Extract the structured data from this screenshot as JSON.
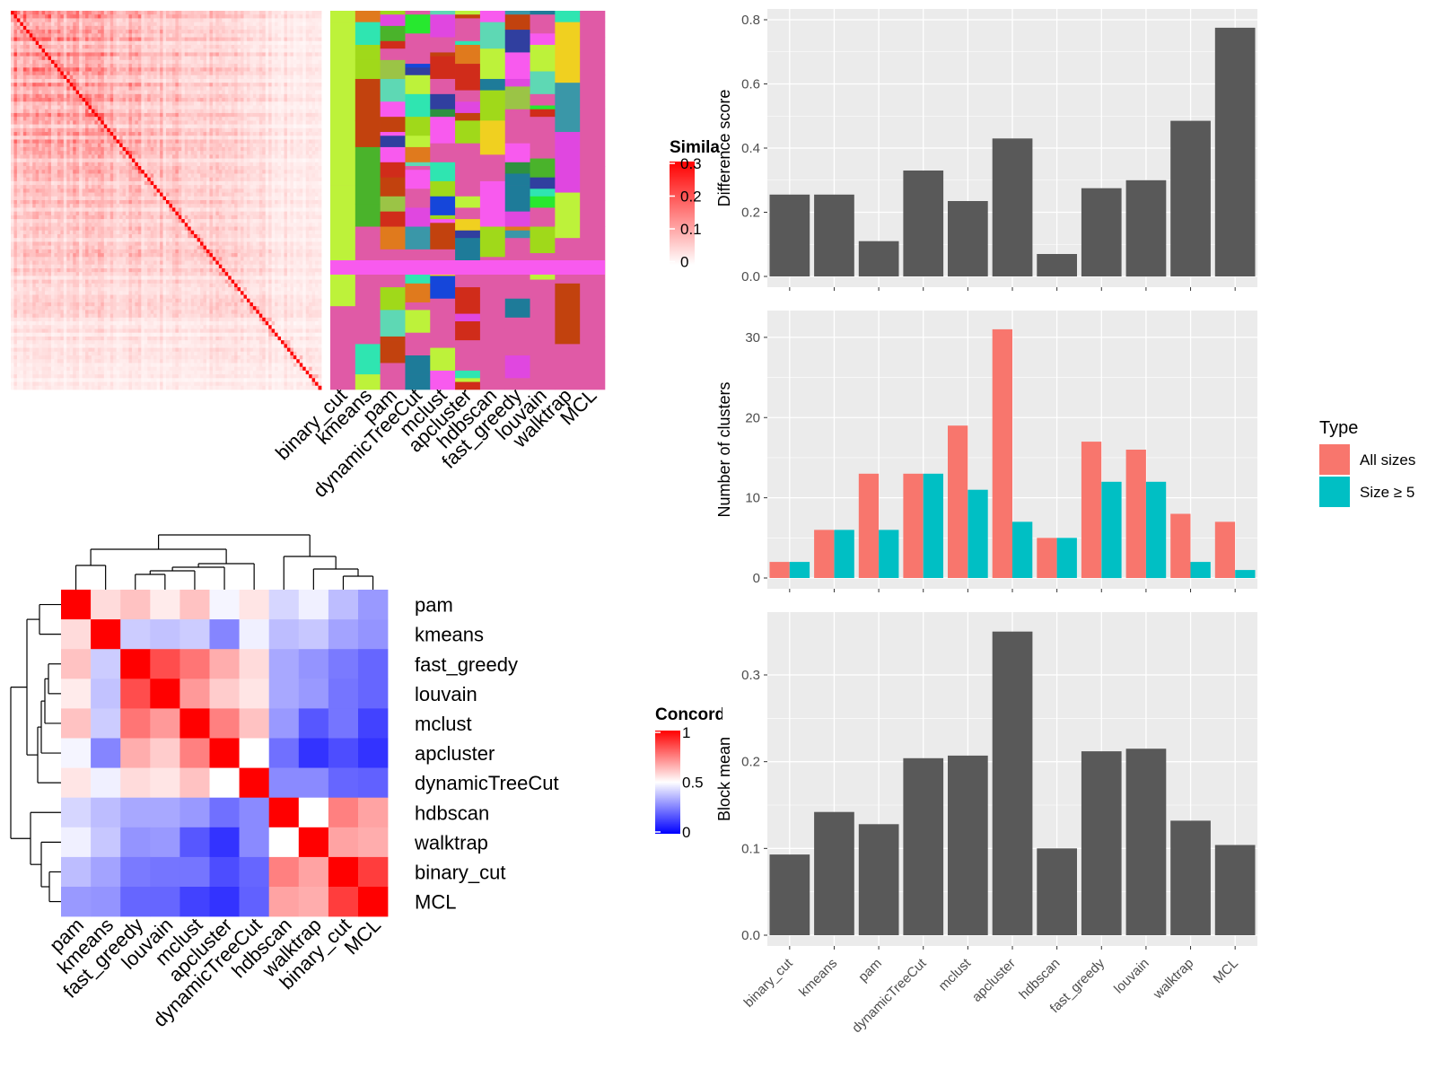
{
  "colors": {
    "bar_gray": "#595959",
    "panel_bg": "#ebebeb",
    "all_sizes": "#F8766D",
    "size_ge5": "#00BFC4",
    "heat_high": "#ff0000",
    "heat_mid": "#ffffff",
    "heat_low": "#0000ff"
  },
  "methods_order": [
    "binary_cut",
    "kmeans",
    "pam",
    "dynamicTreeCut",
    "mclust",
    "apcluster",
    "hdbscan",
    "fast_greedy",
    "louvain",
    "walktrap",
    "MCL"
  ],
  "similarity_legend": {
    "title": "Simila",
    "ticks": [
      "0.3",
      "0.2",
      "0.1",
      "0"
    ]
  },
  "concordance_legend": {
    "title": "Concord",
    "ticks": [
      "1",
      "0.5",
      "0"
    ]
  },
  "chart_data": [
    {
      "type": "bar",
      "id": "difference-score",
      "categories": [
        "binary_cut",
        "kmeans",
        "pam",
        "dynamicTreeCut",
        "mclust",
        "apcluster",
        "hdbscan",
        "fast_greedy",
        "louvain",
        "walktrap",
        "MCL"
      ],
      "values": [
        0.255,
        0.255,
        0.11,
        0.33,
        0.235,
        0.43,
        0.07,
        0.275,
        0.3,
        0.485,
        0.775
      ],
      "ylabel": "Difference score",
      "ylim": [
        0,
        0.8
      ],
      "yticks": [
        "0.0",
        "0.2",
        "0.4",
        "0.6",
        "0.8"
      ],
      "grid": true
    },
    {
      "type": "bar",
      "id": "number-of-clusters",
      "categories": [
        "binary_cut",
        "kmeans",
        "pam",
        "dynamicTreeCut",
        "mclust",
        "apcluster",
        "hdbscan",
        "fast_greedy",
        "louvain",
        "walktrap",
        "MCL"
      ],
      "series": [
        {
          "name": "All sizes",
          "values": [
            2,
            6,
            13,
            13,
            19,
            31,
            5,
            17,
            16,
            8,
            7
          ]
        },
        {
          "name": "Size ≥ 5",
          "values": [
            2,
            6,
            6,
            13,
            11,
            7,
            5,
            12,
            12,
            2,
            1
          ]
        }
      ],
      "ylabel": "Number of clusters",
      "ylim": [
        0,
        32
      ],
      "yticks": [
        "0",
        "10",
        "20",
        "30"
      ],
      "legend": {
        "title": "Type",
        "position": "right"
      },
      "grid": true
    },
    {
      "type": "bar",
      "id": "block-mean",
      "categories": [
        "binary_cut",
        "kmeans",
        "pam",
        "dynamicTreeCut",
        "mclust",
        "apcluster",
        "hdbscan",
        "fast_greedy",
        "louvain",
        "walktrap",
        "MCL"
      ],
      "values": [
        0.093,
        0.142,
        0.128,
        0.204,
        0.207,
        0.35,
        0.1,
        0.212,
        0.215,
        0.132,
        0.104
      ],
      "ylabel": "Block mean",
      "ylim": [
        0,
        0.36
      ],
      "yticks": [
        "0.0",
        "0.1",
        "0.2",
        "0.3"
      ],
      "grid": true
    },
    {
      "type": "heatmap",
      "id": "concordance-heatmap",
      "rows": [
        "pam",
        "kmeans",
        "fast_greedy",
        "louvain",
        "mclust",
        "apcluster",
        "dynamicTreeCut",
        "hdbscan",
        "walktrap",
        "binary_cut",
        "MCL"
      ],
      "columns": [
        "pam",
        "kmeans",
        "fast_greedy",
        "louvain",
        "mclust",
        "apcluster",
        "dynamicTreeCut",
        "hdbscan",
        "walktrap",
        "binary_cut",
        "MCL"
      ],
      "values": [
        [
          1,
          0.57,
          0.62,
          0.54,
          0.62,
          0.48,
          0.55,
          0.42,
          0.47,
          0.37,
          0.3
        ],
        [
          0.57,
          1,
          0.4,
          0.38,
          0.4,
          0.26,
          0.47,
          0.37,
          0.39,
          0.32,
          0.29
        ],
        [
          0.62,
          0.4,
          1,
          0.85,
          0.77,
          0.66,
          0.57,
          0.33,
          0.29,
          0.24,
          0.2
        ],
        [
          0.54,
          0.38,
          0.85,
          1,
          0.7,
          0.6,
          0.55,
          0.33,
          0.3,
          0.23,
          0.2
        ],
        [
          0.62,
          0.4,
          0.77,
          0.7,
          1,
          0.75,
          0.62,
          0.3,
          0.17,
          0.23,
          0.13
        ],
        [
          0.48,
          0.26,
          0.66,
          0.6,
          0.75,
          1,
          0.5,
          0.22,
          0.1,
          0.15,
          0.1
        ],
        [
          0.55,
          0.47,
          0.57,
          0.55,
          0.62,
          0.5,
          1,
          0.27,
          0.27,
          0.2,
          0.19
        ],
        [
          0.42,
          0.37,
          0.33,
          0.33,
          0.3,
          0.22,
          0.27,
          1,
          0.5,
          0.75,
          0.68
        ],
        [
          0.47,
          0.39,
          0.29,
          0.3,
          0.17,
          0.1,
          0.27,
          0.5,
          1,
          0.68,
          0.66
        ],
        [
          0.37,
          0.32,
          0.24,
          0.23,
          0.23,
          0.15,
          0.2,
          0.75,
          0.68,
          1,
          0.88
        ],
        [
          0.3,
          0.29,
          0.2,
          0.2,
          0.13,
          0.1,
          0.19,
          0.68,
          0.66,
          0.88,
          1
        ]
      ],
      "colorscale": {
        "min": 0,
        "mid": 0.5,
        "max": 1
      }
    },
    {
      "type": "heatmap",
      "id": "similarity-heatmap",
      "n": 100,
      "colorscale": {
        "min": 0,
        "max": 0.3
      }
    }
  ],
  "membership_palette": [
    "#E05AA6",
    "#5ED8B4",
    "#BDF23A",
    "#303F9F",
    "#F85AEE",
    "#3A97A8",
    "#1E7B99",
    "#9BC446",
    "#2FE5B1",
    "#27E82F",
    "#C2420E",
    "#F0D020",
    "#1546DA",
    "#2E9140",
    "#D02C1A",
    "#E07A1D",
    "#A0D91A",
    "#4AB32B",
    "#E047E0"
  ]
}
